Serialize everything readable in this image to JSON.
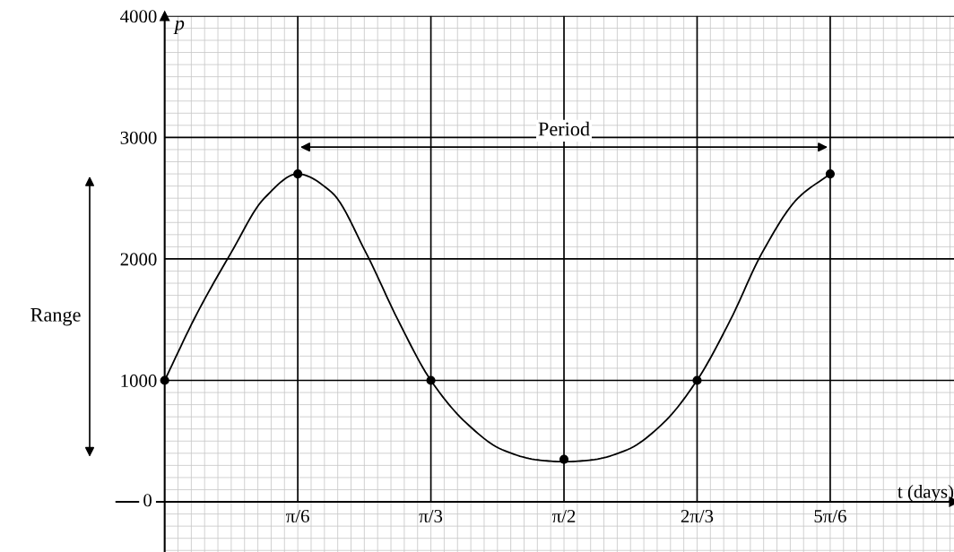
{
  "chart_data": {
    "type": "line",
    "xlabel": "t (days)",
    "ylabel": "p",
    "xlim": [
      -0.19,
      3.105
    ],
    "ylim": [
      -413,
      4000
    ],
    "xticks": [
      {
        "value": 0.5236,
        "label": "π/6"
      },
      {
        "value": 1.0472,
        "label": "π/3"
      },
      {
        "value": 1.5708,
        "label": "π/2"
      },
      {
        "value": 2.0944,
        "label": "2π/3"
      },
      {
        "value": 2.618,
        "label": "5π/6"
      }
    ],
    "yticks": [
      0,
      1000,
      2000,
      3000,
      4000
    ],
    "grid": true,
    "annotations": [
      "Period",
      "Range"
    ],
    "series": [
      {
        "type": "line",
        "color": "#000000",
        "marker": "none",
        "x": [
          0,
          0.127,
          0.261,
          0.392,
          0.5236,
          0.656,
          0.792,
          0.917,
          1.047,
          1.186,
          1.327,
          1.468,
          1.571,
          1.679,
          1.821,
          1.962,
          2.094,
          2.226,
          2.35,
          2.491,
          2.618
        ],
        "values": [
          1000,
          1550,
          2050,
          2500,
          2700,
          2550,
          2050,
          1500,
          1000,
          650,
          430,
          345,
          330,
          345,
          430,
          650,
          1000,
          1500,
          2050,
          2500,
          2700
        ]
      },
      {
        "type": "scatter",
        "color": "#000000",
        "marker": "circle",
        "x": [
          0,
          0.5236,
          1.0472,
          1.5708,
          2.0944,
          2.618
        ],
        "values": [
          1000,
          2700,
          1000,
          350,
          1000,
          2700
        ]
      }
    ]
  }
}
